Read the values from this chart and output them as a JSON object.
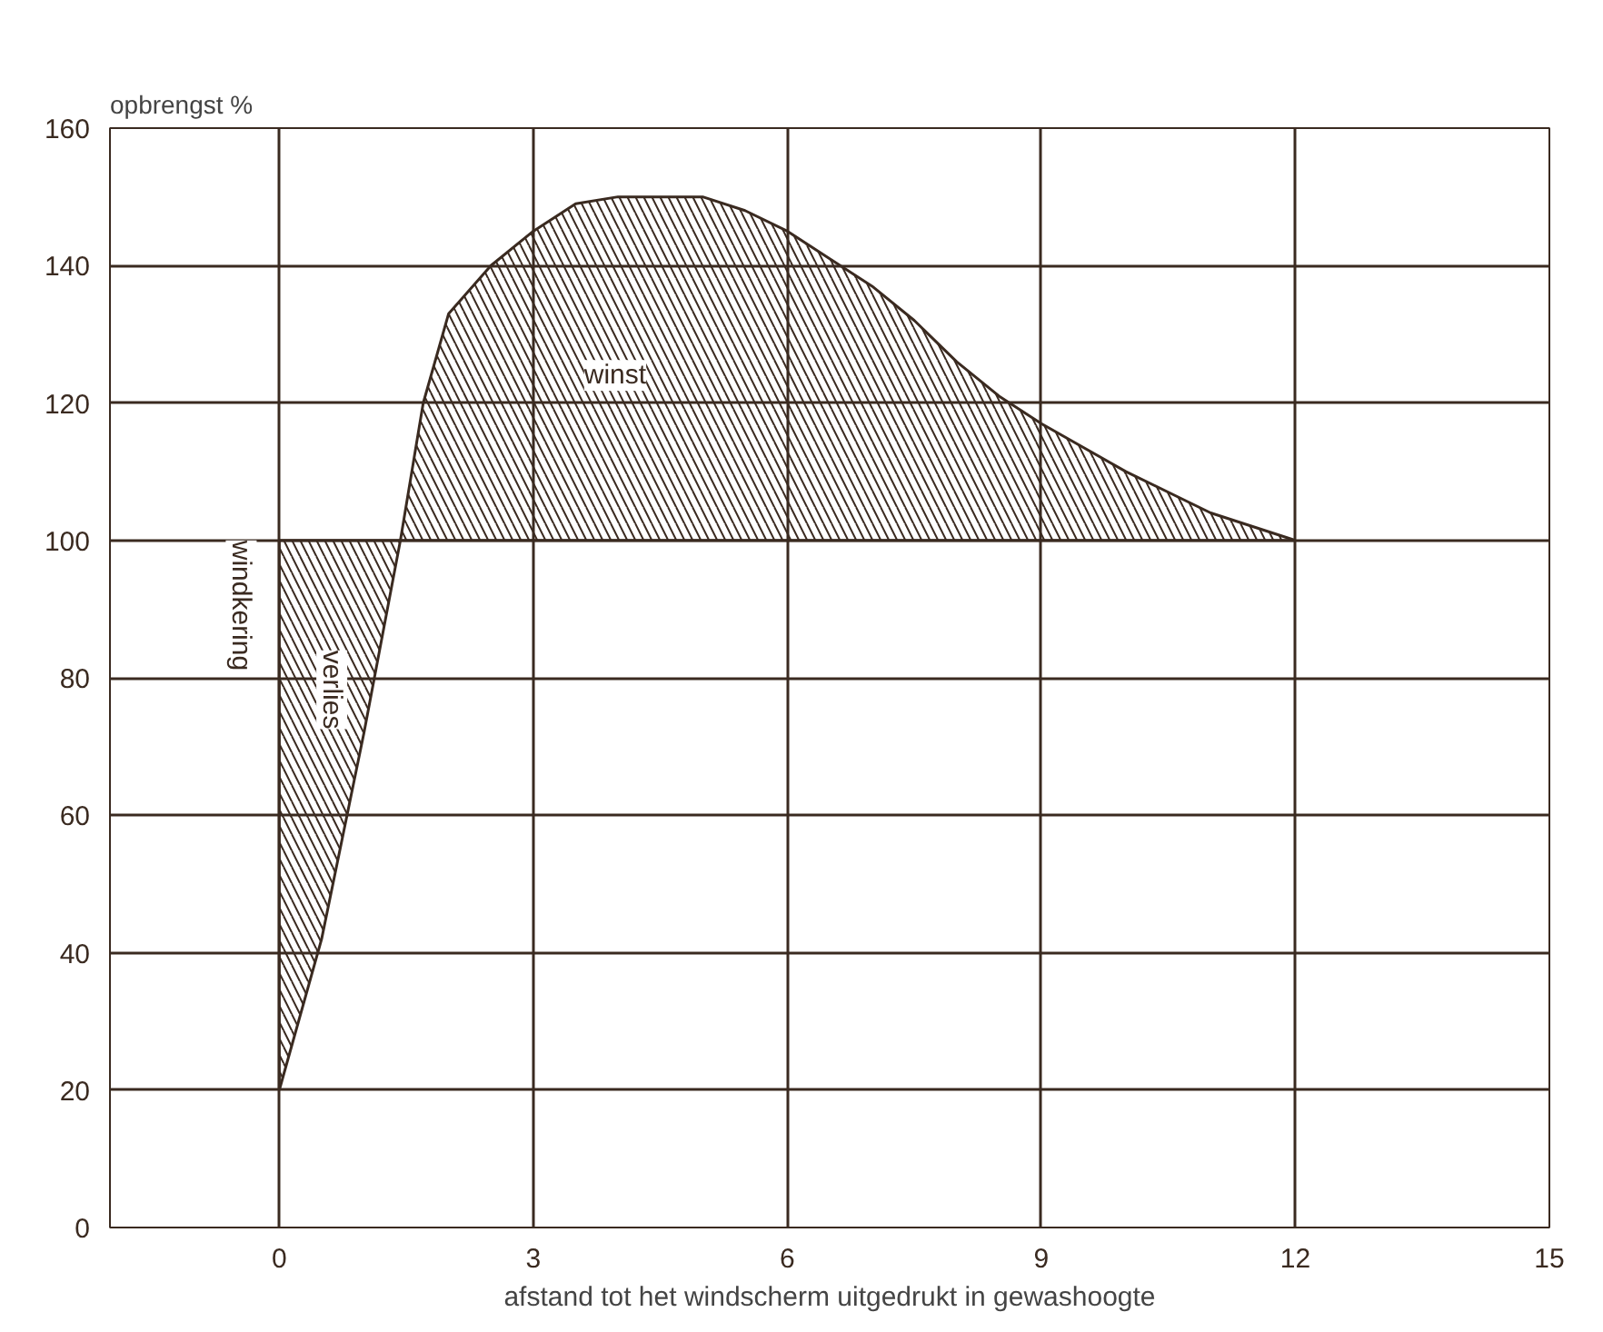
{
  "chart_data": {
    "type": "line",
    "xlabel": "afstand tot het windscherm uitgedrukt in gewashoogte",
    "ylabel": "opbrengst %",
    "xlim": [
      -2,
      15
    ],
    "ylim": [
      0,
      160
    ],
    "xticks": [
      0,
      3,
      6,
      9,
      12,
      15
    ],
    "yticks": [
      0,
      20,
      40,
      60,
      80,
      100,
      120,
      140,
      160
    ],
    "grid": true,
    "marker": "none",
    "line_style": "solid",
    "series": [
      {
        "type": "line",
        "color": "#3a2a20",
        "x": [
          0,
          0.5,
          1.0,
          1.43,
          1.7,
          2.0,
          2.5,
          3,
          3.5,
          4,
          4.5,
          5,
          5.5,
          6,
          6.5,
          7,
          7.5,
          8,
          8.5,
          9,
          10,
          11,
          12
        ],
        "values": [
          20,
          42,
          72,
          100,
          120,
          133,
          140,
          145,
          149,
          150,
          150,
          150,
          148,
          145,
          141,
          137,
          132,
          126,
          121,
          117,
          110,
          104,
          100
        ],
        "lower": [
          20,
          42,
          72,
          100,
          100,
          100,
          100,
          100,
          100,
          100,
          100,
          100,
          100,
          100,
          100,
          100,
          100,
          100,
          100,
          100,
          100,
          100,
          100
        ],
        "upper": [
          100,
          100,
          100,
          100,
          120,
          133,
          140,
          145,
          149,
          150,
          150,
          150,
          148,
          145,
          141,
          137,
          132,
          126,
          121,
          117,
          110,
          104,
          100
        ]
      },
      {
        "color": "#3a2a20",
        "x": [
          0,
          12
        ],
        "values": [
          100,
          100
        ]
      },
      {
        "color": "#3a2a20",
        "x": [
          0,
          0
        ],
        "values": [
          20,
          100
        ]
      }
    ],
    "annotations": [
      "winst",
      "verlies",
      "windkering"
    ]
  }
}
